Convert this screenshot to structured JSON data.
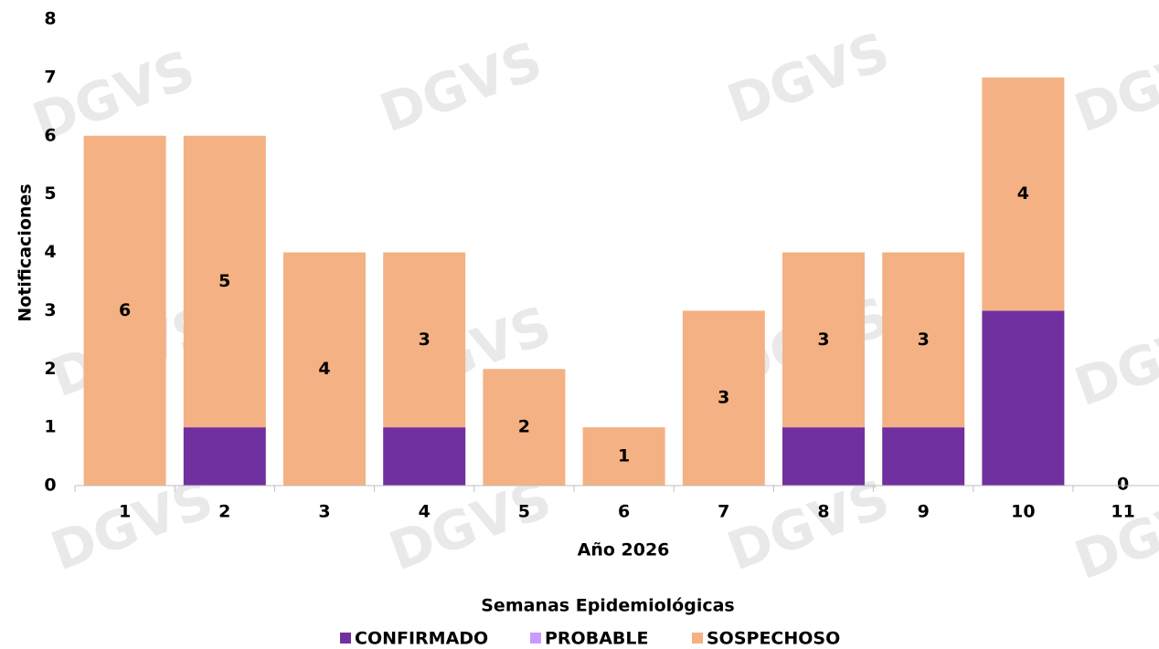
{
  "chart_data": {
    "type": "stacked_bar",
    "watermark": "DGVS",
    "x_label": "Año 2026",
    "title": "Semanas Epidemiológicas",
    "y_label": "Notificaciones",
    "categories": [
      "1",
      "2",
      "3",
      "4",
      "5",
      "6",
      "7",
      "8",
      "9",
      "10",
      "11"
    ],
    "series": [
      {
        "name": "CONFIRMADO",
        "color": "#7030a0",
        "values": [
          0,
          1,
          0,
          1,
          0,
          0,
          0,
          1,
          1,
          3,
          0
        ],
        "show_labels": false
      },
      {
        "name": "PROBABLE",
        "color": "#cc99ff",
        "values": [
          0,
          0,
          0,
          0,
          0,
          0,
          0,
          0,
          0,
          0,
          0
        ],
        "show_labels": false
      },
      {
        "name": "SOSPECHOSO",
        "color": "#f4b183",
        "values": [
          6,
          5,
          4,
          3,
          2,
          1,
          3,
          3,
          3,
          4,
          0
        ],
        "show_labels": true
      }
    ],
    "ylim": [
      0,
      8
    ],
    "yticks": [
      0,
      1,
      2,
      3,
      4,
      5,
      6,
      7,
      8
    ],
    "grid": false
  }
}
